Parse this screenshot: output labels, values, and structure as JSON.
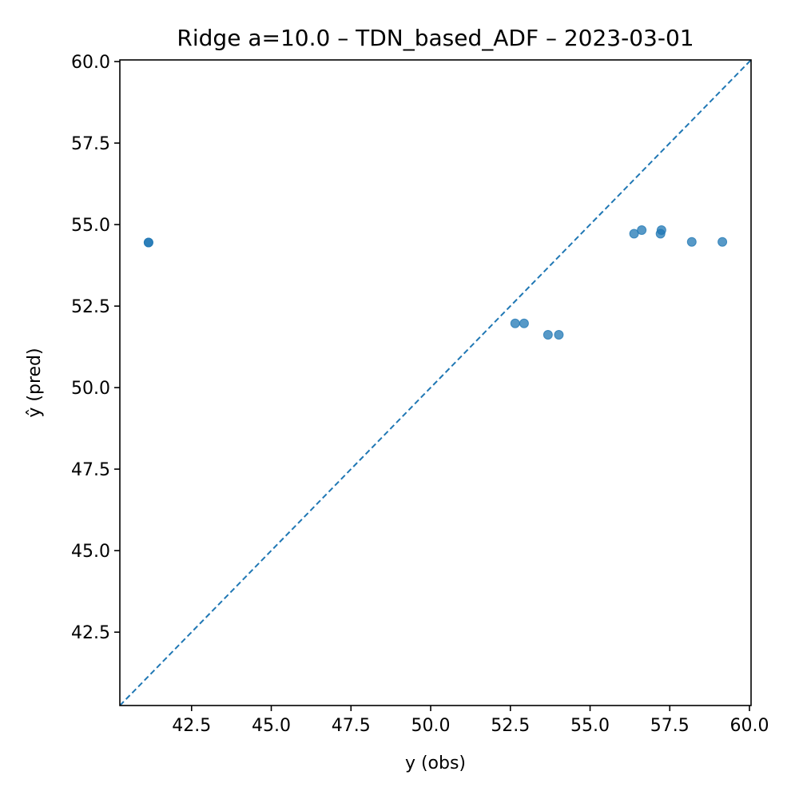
{
  "chart_data": {
    "type": "scatter",
    "title": "Ridge a=10.0 – TDN_based_ADF – 2023-03-01",
    "xlabel": "y (obs)",
    "ylabel": "ŷ (pred)",
    "xlim": [
      40.25,
      60.05
    ],
    "ylim": [
      40.25,
      60.05
    ],
    "x_ticks": [
      42.5,
      45.0,
      47.5,
      50.0,
      52.5,
      55.0,
      57.5,
      60.0
    ],
    "x_tick_labels": [
      "42.5",
      "45.0",
      "47.5",
      "50.0",
      "52.5",
      "55.0",
      "57.5",
      "60.0"
    ],
    "y_ticks": [
      42.5,
      45.0,
      47.5,
      50.0,
      52.5,
      55.0,
      57.5,
      60.0
    ],
    "y_tick_labels": [
      "42.5",
      "45.0",
      "47.5",
      "50.0",
      "52.5",
      "55.0",
      "57.5",
      "60.0"
    ],
    "grid": false,
    "reference_line": {
      "style": "dashed",
      "description": "y = x"
    },
    "colors": {
      "points": "#1f77b4",
      "reference_line": "#1f77b4"
    },
    "points": [
      {
        "x": 41.15,
        "y": 54.45
      },
      {
        "x": 41.15,
        "y": 54.45
      },
      {
        "x": 52.65,
        "y": 51.97
      },
      {
        "x": 52.93,
        "y": 51.97
      },
      {
        "x": 53.68,
        "y": 51.62
      },
      {
        "x": 54.02,
        "y": 51.62
      },
      {
        "x": 56.38,
        "y": 54.72
      },
      {
        "x": 56.62,
        "y": 54.83
      },
      {
        "x": 57.21,
        "y": 54.72
      },
      {
        "x": 57.24,
        "y": 54.83
      },
      {
        "x": 58.19,
        "y": 54.47
      },
      {
        "x": 59.15,
        "y": 54.47
      }
    ]
  }
}
